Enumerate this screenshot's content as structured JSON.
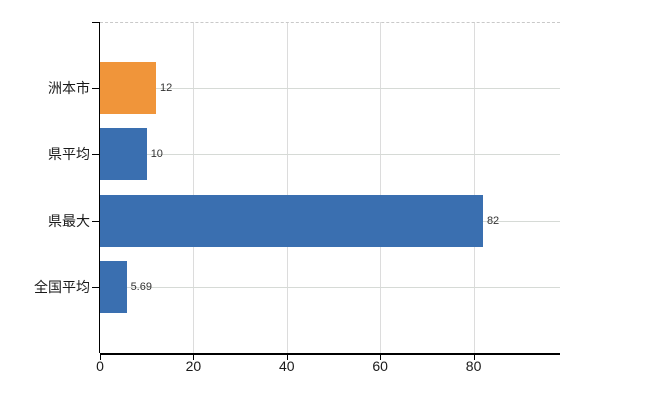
{
  "chart_data": {
    "type": "bar",
    "orientation": "horizontal",
    "title": "",
    "xlabel": "",
    "ylabel": "",
    "categories": [
      "洲本市",
      "県平均",
      "県最大",
      "全国平均"
    ],
    "values": [
      12,
      10,
      82,
      5.69
    ],
    "value_labels": [
      "12",
      "10",
      "82",
      "5.69"
    ],
    "bar_colors": [
      "#f0953a",
      "#3a6fb0",
      "#3a6fb0",
      "#3a6fb0"
    ],
    "highlighted_category": "洲本市",
    "x_tick_values": [
      0,
      20,
      40,
      60,
      80
    ],
    "x_tick_labels": [
      "0",
      "20",
      "40",
      "60",
      "80"
    ],
    "xlim": [
      0,
      98.5
    ],
    "grid": true,
    "legend": false,
    "value_label_position": "outside-end"
  },
  "colors": {
    "bar_blue": "#3a6fb0",
    "bar_orange": "#f0953a",
    "gridline": "#dcdcdc",
    "top_border_dashed": "#c9c9c9",
    "axis": "#000000",
    "value_label_text": "#333333",
    "tick_label_text": "#1a1a1a",
    "background": "#ffffff"
  }
}
